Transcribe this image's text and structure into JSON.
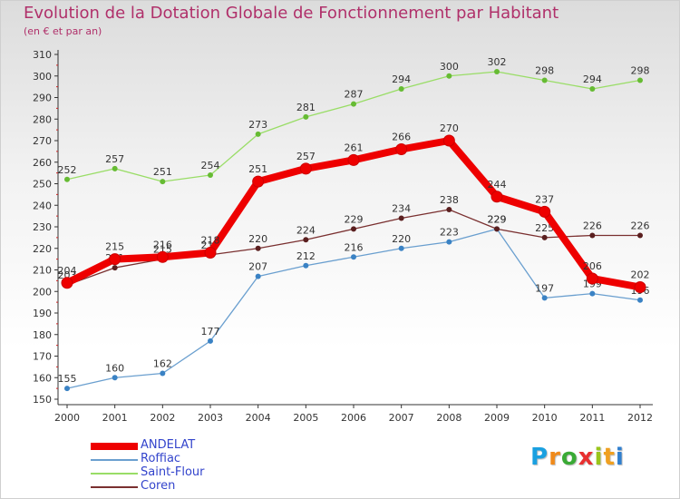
{
  "chart_data": {
    "type": "line",
    "title": "Evolution de la Dotation Globale de Fonctionnement par Habitant",
    "subtitle": "(en € et par an)",
    "categories": [
      "2000",
      "2001",
      "2002",
      "2003",
      "2004",
      "2005",
      "2006",
      "2007",
      "2008",
      "2009",
      "2010",
      "2011",
      "2012"
    ],
    "ylim": [
      150,
      310
    ],
    "yticks": [
      150,
      160,
      170,
      180,
      190,
      200,
      210,
      220,
      230,
      240,
      250,
      260,
      270,
      280,
      290,
      300,
      310
    ],
    "grid": false,
    "legend_position": "bottom-left",
    "series": [
      {
        "name": "ANDELAT",
        "color": "#ee0000",
        "values": [
          204,
          215,
          216,
          218,
          251,
          257,
          261,
          266,
          270,
          244,
          237,
          206,
          202
        ]
      },
      {
        "name": "Roffiac",
        "color": "#6a9fcf",
        "values": [
          155,
          160,
          162,
          177,
          207,
          212,
          216,
          220,
          223,
          229,
          197,
          199,
          196
        ]
      },
      {
        "name": "Saint-Flour",
        "color": "#99dd66",
        "values": [
          252,
          257,
          251,
          254,
          273,
          281,
          287,
          294,
          300,
          302,
          298,
          294,
          298
        ]
      },
      {
        "name": "Coren",
        "color": "#7a3030",
        "values": [
          203,
          211,
          215,
          217,
          220,
          224,
          229,
          234,
          238,
          229,
          225,
          226,
          226
        ]
      }
    ]
  },
  "watermark": {
    "letters": [
      "P",
      "r",
      "o",
      "x",
      "i",
      "t",
      "i"
    ],
    "colors": [
      "#1aa0e0",
      "#f08a1a",
      "#3aaa35",
      "#e83030",
      "#9ac51b",
      "#f0a020",
      "#2f7fcf"
    ]
  }
}
